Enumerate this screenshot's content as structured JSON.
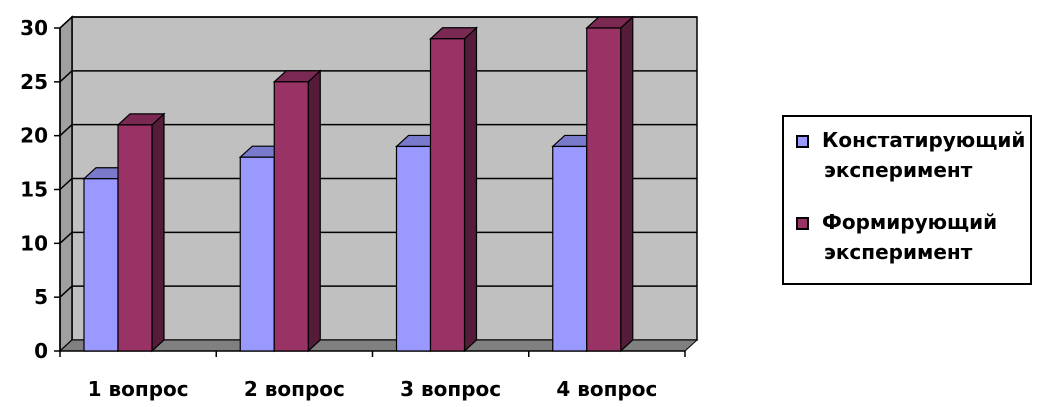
{
  "chart_data": {
    "type": "bar",
    "categories": [
      "1 вопрос",
      "2 вопрос",
      "3 вопрос",
      "4 вопрос"
    ],
    "series": [
      {
        "name": "Констатирующий эксперимент",
        "values": [
          16,
          18,
          19,
          19
        ],
        "color": "#9999ff"
      },
      {
        "name": "Формирующий эксперимент",
        "values": [
          21,
          25,
          29,
          30
        ],
        "color": "#993366"
      }
    ],
    "ylim": [
      0,
      30
    ],
    "yticks": [
      0,
      5,
      10,
      15,
      20,
      25,
      30
    ],
    "grid": true,
    "legend_position": "right",
    "wall_color": "#c0c0c0",
    "floor_color": "#808080"
  },
  "legend": {
    "items": [
      {
        "line1": "Констатирующий",
        "line2": "эксперимент",
        "color": "#9999ff"
      },
      {
        "line1": "Формирующий",
        "line2": "эксперимент",
        "color": "#993366"
      }
    ]
  }
}
